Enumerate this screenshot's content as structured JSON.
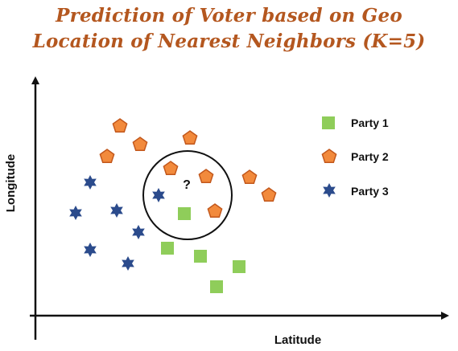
{
  "title": {
    "line1": "Prediction of Voter based on Geo",
    "line2": "Location of Nearest Neighbors (K=5)"
  },
  "axes": {
    "x_label": "Latitude",
    "y_label": "Longitude"
  },
  "query": {
    "label": "?"
  },
  "legend": [
    {
      "label": "Party 1",
      "shape": "square-icon",
      "color": "#8fcd5a"
    },
    {
      "label": "Party 2",
      "shape": "pentagon-icon",
      "color": "#f28a3c"
    },
    {
      "label": "Party 3",
      "shape": "star-icon",
      "color": "#2b4b8c"
    }
  ],
  "colors": {
    "title": "#b4571f",
    "party1_fill": "#8fcd5a",
    "party2_fill": "#f28a3c",
    "party2_stroke": "#c2571b",
    "party3_fill": "#2b4b8c",
    "axis": "#111111"
  }
}
